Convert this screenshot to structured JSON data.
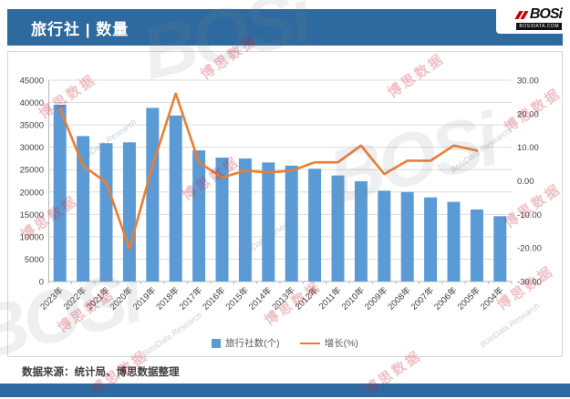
{
  "header": {
    "title": "旅行社 | 数量",
    "logo": {
      "word": "BOSi",
      "domain": "BOSIDATA.COM"
    }
  },
  "footer": {
    "source": "数据来源：统计局、博思数据整理"
  },
  "watermarks": {
    "cn": "博思数据",
    "en": "BosiData Research",
    "logo": "BOSi"
  },
  "chart_data": {
    "type": "bar",
    "subtype": "combo-bar-line-dual-axis",
    "categories": [
      "2023年",
      "2022年",
      "2021年",
      "2020年",
      "2019年",
      "2018年",
      "2017年",
      "2016年",
      "2015年",
      "2014年",
      "2013年",
      "2012年",
      "2011年",
      "2010年",
      "2009年",
      "2008年",
      "2007年",
      "2006年",
      "2005年",
      "2004年"
    ],
    "series": [
      {
        "name": "旅行社数(个)",
        "type": "bar",
        "axis": "left",
        "color": "#5b9bd5",
        "values": [
          39500,
          32500,
          30900,
          31100,
          38800,
          37100,
          29300,
          27700,
          27500,
          26600,
          25900,
          25200,
          23700,
          22400,
          20300,
          20000,
          18800,
          17800,
          16100,
          14600
        ]
      },
      {
        "name": "增长(%)",
        "type": "line",
        "axis": "right",
        "color": "#ed7d31",
        "values": [
          21.5,
          4.5,
          -0.5,
          -20.2,
          4.5,
          26,
          5.5,
          1,
          3,
          2.5,
          3,
          5.5,
          5.5,
          10.5,
          2,
          6,
          6,
          10.5,
          9,
          null
        ]
      }
    ],
    "left_axis": {
      "min": 0,
      "max": 45000,
      "ticks": [
        "0",
        "5000",
        "10000",
        "15000",
        "20000",
        "25000",
        "30000",
        "35000",
        "40000",
        "45000"
      ]
    },
    "right_axis": {
      "min": -30,
      "max": 30,
      "ticks_top_to_bottom": [
        "30.00",
        "20.00",
        "10.00",
        "0.00",
        "-10.00",
        "-20.00",
        "-30.00"
      ]
    },
    "grid": true,
    "legend_position": "bottom",
    "x_labels_rotated": true
  }
}
